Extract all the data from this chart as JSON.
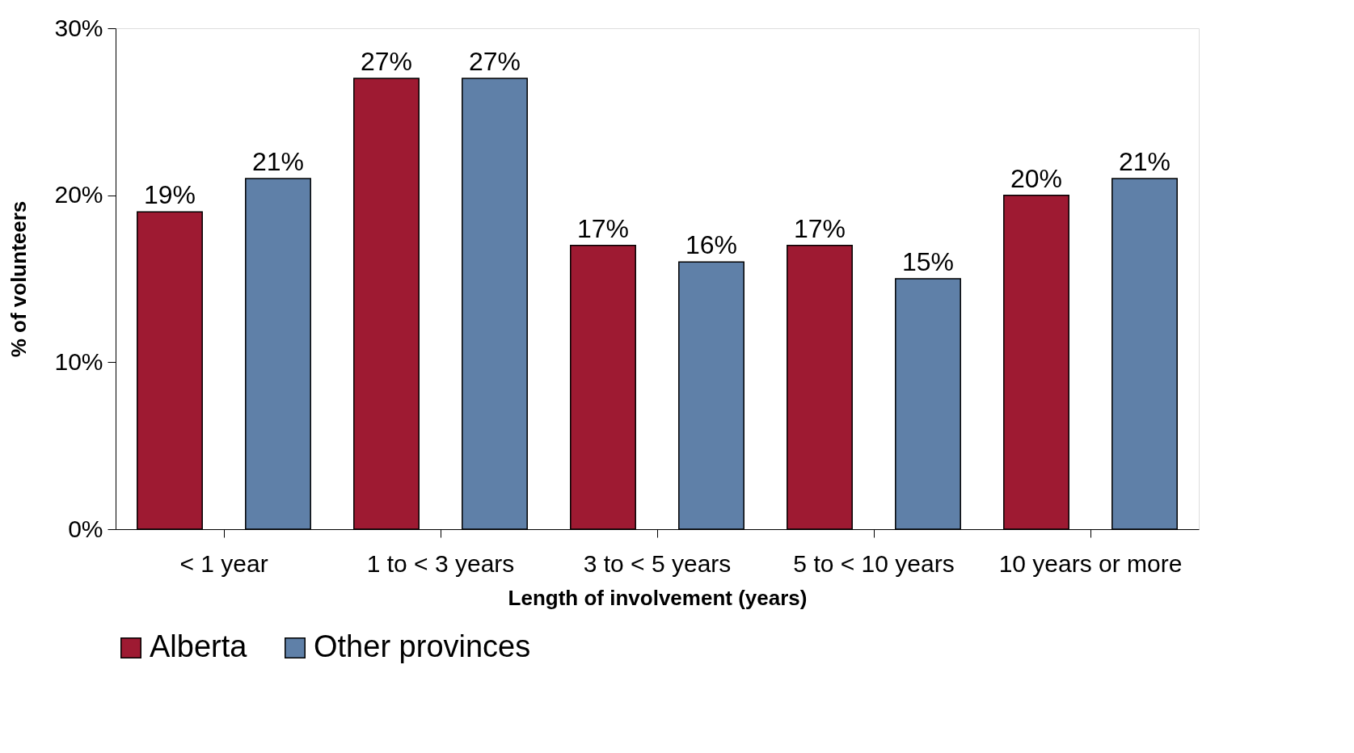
{
  "chart_data": {
    "type": "bar",
    "xlabel": "Length of involvement (years)",
    "ylabel": "% of volunteers",
    "categories": [
      "< 1 year",
      "1 to < 3 years",
      "3 to < 5 years",
      "5 to < 10 years",
      "10 years or more"
    ],
    "series": [
      {
        "name": "Alberta",
        "color": "#9e1a32",
        "values": [
          19,
          27,
          17,
          17,
          20
        ],
        "value_labels": [
          "19%",
          "27%",
          "17%",
          "17%",
          "20%"
        ]
      },
      {
        "name": "Other provinces",
        "color": "#5f80a8",
        "values": [
          21,
          27,
          16,
          15,
          21
        ],
        "value_labels": [
          "21%",
          "27%",
          "16%",
          "15%",
          "21%"
        ]
      }
    ],
    "ylim": [
      0,
      30
    ],
    "yticks": [
      {
        "value": 0,
        "label": "0%"
      },
      {
        "value": 10,
        "label": "10%"
      },
      {
        "value": 20,
        "label": "20%"
      },
      {
        "value": 30,
        "label": "30%"
      }
    ],
    "grid": false,
    "legend": "bottom"
  }
}
